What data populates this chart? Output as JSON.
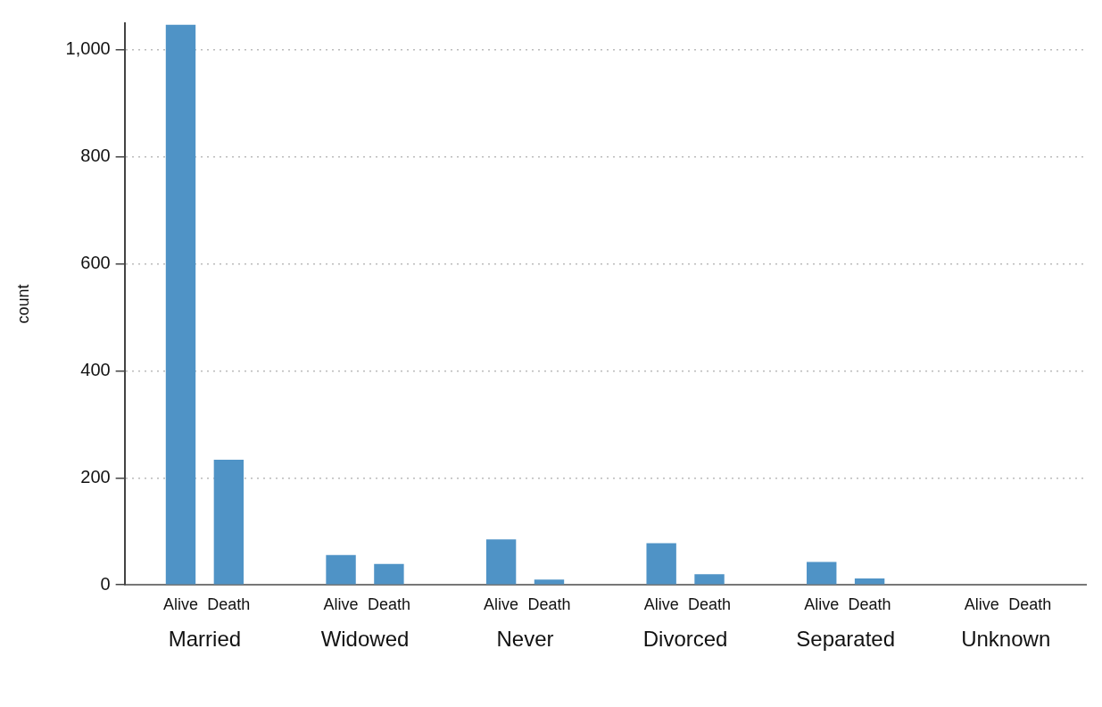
{
  "chart_data": {
    "type": "bar",
    "ylabel": "count",
    "categories": [
      "Married",
      "Widowed",
      "Never",
      "Divorced",
      "Separated",
      "Unknown"
    ],
    "series": [
      {
        "name": "Alive",
        "color": "#4f93c6",
        "values": [
          1047,
          56,
          85,
          78,
          43,
          1
        ]
      },
      {
        "name": "Death",
        "color": "#4f93c6",
        "values": [
          234,
          39,
          10,
          20,
          12,
          0
        ]
      }
    ],
    "ylim": [
      0,
      1050
    ],
    "yticks": [
      0,
      200,
      400,
      600,
      800,
      {
        "value": 1000,
        "label": "1,000"
      }
    ],
    "grid": "y",
    "legend": false
  }
}
